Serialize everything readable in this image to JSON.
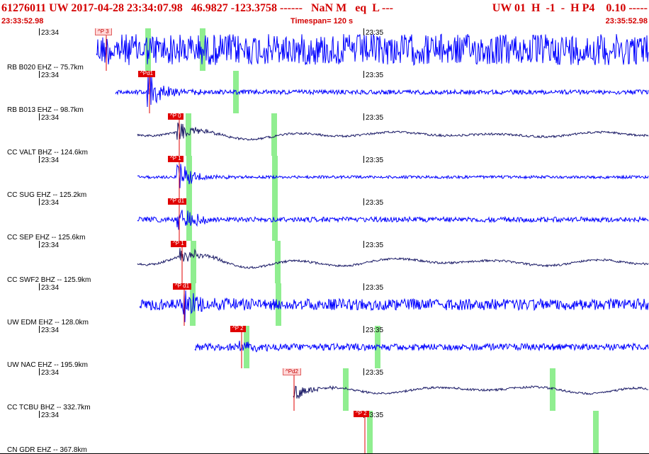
{
  "header": {
    "event_line": "61276011 UW 2017-04-28 23:34:07.98   46.9827 -123.3758 ------   NaN M   eq  L ---",
    "right_line": "UW 01  H  -1  -  H P4    0.10 -----",
    "start_time": "23:33:52.98",
    "timespan": "Timespan= 120 s",
    "end_time": "23:35:52.98"
  },
  "time_ticks": [
    "23:34",
    "23:35"
  ],
  "colors": {
    "header_red": "#d40000",
    "wave_blue": "#0000ff",
    "wave_navy": "#1a1a66",
    "pick_red": "#e00000",
    "marker_green": "#90ee90"
  },
  "traces": [
    {
      "label": "RB B020 EHZ -- 75.7km",
      "pick": "^P 3",
      "pick_style": "light",
      "pick_frac": 0.155,
      "start_frac": 0.148,
      "greens": [
        0.228,
        0.312
      ],
      "type": "hf",
      "amp": 0.55,
      "burst": 0.0
    },
    {
      "label": "RB B013 EHZ -- 98.7km",
      "pick": "^Pd1",
      "pick_style": "red",
      "pick_frac": 0.222,
      "start_frac": 0.178,
      "greens": [
        0.364
      ],
      "type": "hf",
      "amp": 0.08,
      "burst": 0.9
    },
    {
      "label": "CC VALT BHZ -- 124.6km",
      "pick": "^P 0",
      "pick_style": "red",
      "pick_frac": 0.267,
      "start_frac": 0.212,
      "greens": [
        0.29,
        0.423
      ],
      "type": "lf",
      "amp": 0.3,
      "burst": 0.55
    },
    {
      "label": "CC SUG EHZ -- 125.2km",
      "pick": "^P 1",
      "pick_style": "red",
      "pick_frac": 0.267,
      "start_frac": 0.212,
      "greens": [
        0.292,
        0.424
      ],
      "type": "hf",
      "amp": 0.05,
      "burst": 0.7
    },
    {
      "label": "CC SEP EHZ -- 125.6km",
      "pick": "^P d1",
      "pick_style": "red",
      "pick_frac": 0.267,
      "start_frac": 0.212,
      "greens": [
        0.292,
        0.424
      ],
      "type": "hf",
      "amp": 0.09,
      "burst": 0.75
    },
    {
      "label": "CC SWF2 BHZ -- 125.9km",
      "pick": "^P 1",
      "pick_style": "red",
      "pick_frac": 0.272,
      "start_frac": 0.212,
      "greens": [
        0.298,
        0.428
      ],
      "type": "lf",
      "amp": 0.45,
      "burst": 0.55
    },
    {
      "label": "UW EDM EHZ -- 128.0km",
      "pick": "^P d1",
      "pick_style": "red",
      "pick_frac": 0.275,
      "start_frac": 0.215,
      "greens": [
        0.297,
        0.429
      ],
      "type": "hf",
      "amp": 0.2,
      "burst": 0.8
    },
    {
      "label": "UW NAC EHZ -- 195.9km",
      "pick": "^P 2",
      "pick_style": "red",
      "pick_frac": 0.364,
      "start_frac": 0.3,
      "greens": [
        0.38,
        0.582
      ],
      "type": "hf",
      "amp": 0.12,
      "burst": 0.45
    },
    {
      "label": "CC TCBU BHZ -- 332.7km",
      "pick": "^Pd2",
      "pick_style": "light",
      "pick_frac": 0.444,
      "start_frac": 0.452,
      "greens": [
        0.533,
        0.852
      ],
      "type": "lf",
      "amp": 0.45,
      "burst": 0.5
    },
    {
      "label": "CN GDR EHZ -- 367.8km",
      "pick": "^P 2",
      "pick_style": "red",
      "pick_frac": 0.554,
      "start_frac": 1.0,
      "greens": [
        0.57,
        0.918
      ],
      "type": "none",
      "amp": 0.0,
      "burst": 0.0
    }
  ]
}
